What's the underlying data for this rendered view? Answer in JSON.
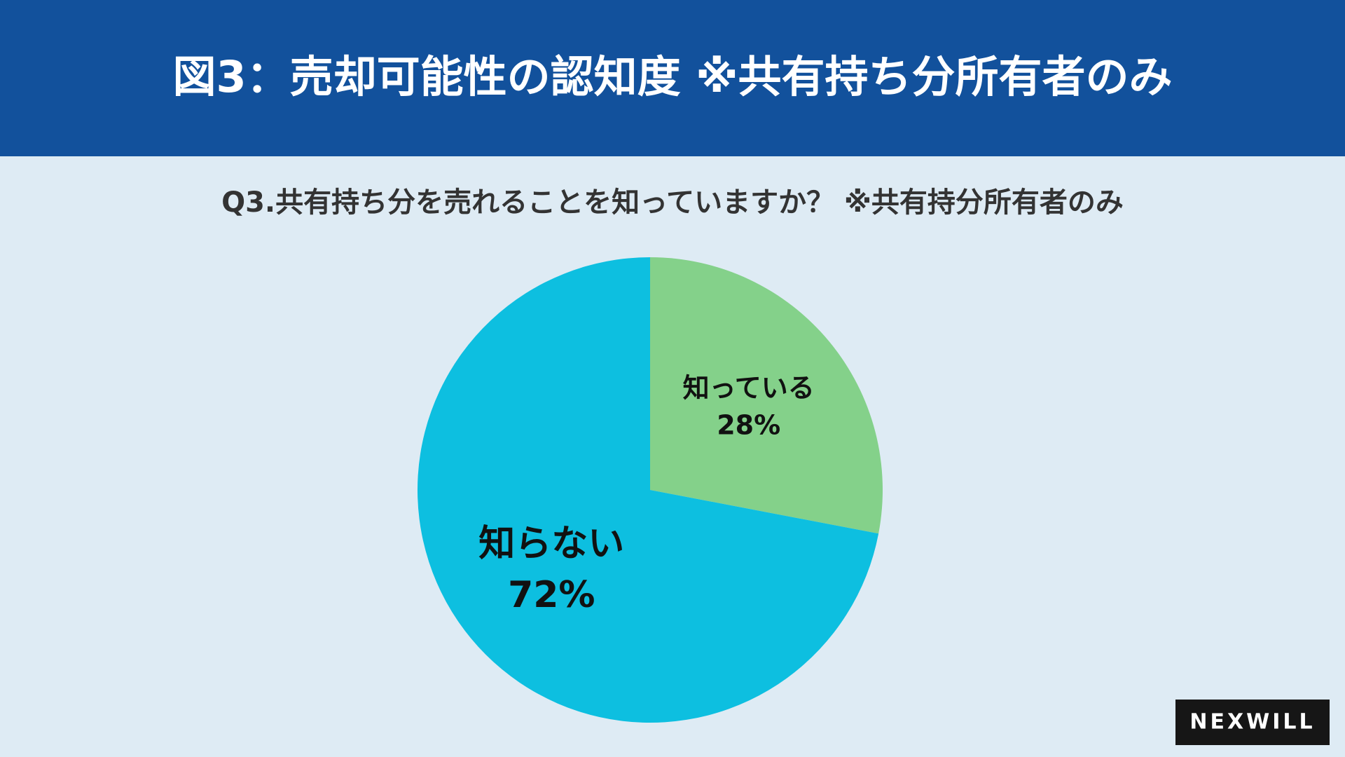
{
  "chart_data": {
    "type": "pie",
    "title": "図3：売却可能性の認知度 ※共有持ち分所有者のみ",
    "subtitle": "Q3.共有持ち分を売れることを知っていますか？ ※共有持分所有者のみ",
    "categories": [
      "知っている",
      "知らない"
    ],
    "values": [
      28,
      72
    ],
    "value_labels": [
      "28%",
      "72%"
    ],
    "colors": [
      "#84d18a",
      "#0dbfe0"
    ]
  },
  "logo": "NEXWILL"
}
